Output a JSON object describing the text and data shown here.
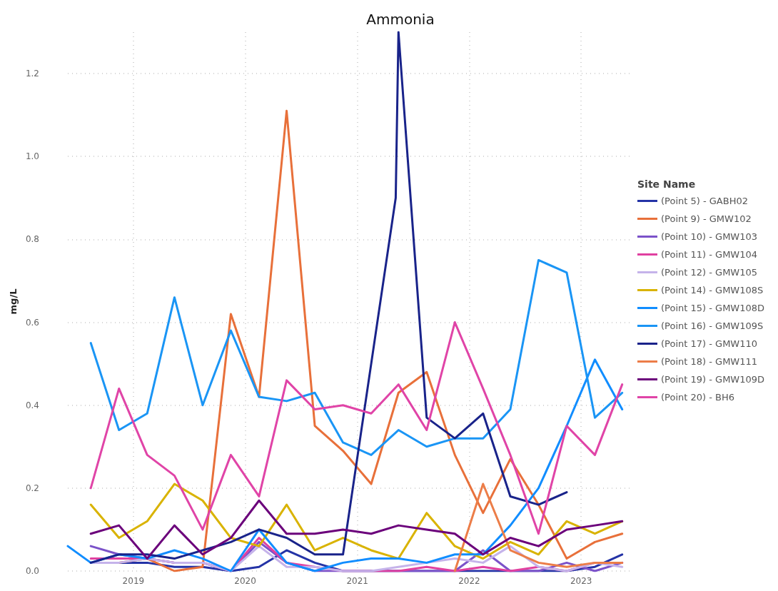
{
  "chart_data": {
    "type": "line",
    "title": "Ammonia",
    "ylabel": "mg/L",
    "legend_title": "Site Name",
    "legend": "right",
    "grid": true,
    "marker": "none",
    "line_style": "solid",
    "xlim": [
      "2018-06-01",
      "2023-06-15"
    ],
    "xticks": [
      {
        "value": "2019",
        "label": "2019"
      },
      {
        "value": "2020",
        "label": "2020"
      },
      {
        "value": "2021",
        "label": "2021"
      },
      {
        "value": "2022",
        "label": "2022"
      },
      {
        "value": "2023",
        "label": "2023"
      }
    ],
    "ylim": [
      0,
      1.3
    ],
    "yticks": [
      {
        "value": 0,
        "label": "0.0"
      },
      0.2,
      0.4,
      0.6,
      0.8,
      {
        "value": 1,
        "label": "1.0"
      },
      1.2
    ],
    "x": [
      "2018-08-15",
      "2018-11-15",
      "2019-02-15",
      "2019-05-15",
      "2019-08-15",
      "2019-11-15",
      "2020-02-15",
      "2020-05-15",
      "2020-08-15",
      "2020-11-15",
      "2021-02-15",
      "2021-05-15",
      "2021-08-15",
      "2021-11-15",
      "2022-02-15",
      "2022-05-15",
      "2022-08-15",
      "2022-11-15",
      "2023-02-15",
      "2023-05-15"
    ],
    "series": [
      {
        "name": "(Point 5) - GABH02",
        "color": "#2433a6",
        "values": [
          0.02,
          0.02,
          0.02,
          0.01,
          0.01,
          0.0,
          0.01,
          0.05,
          0.02,
          0.0,
          0.0,
          0.0,
          0.0,
          0.0,
          0.0,
          0.0,
          0.0,
          0.0,
          0.01,
          0.04
        ]
      },
      {
        "name": "(Point 9) - GMW102",
        "color": "#e8703a",
        "values": [
          0.02,
          0.02,
          0.03,
          0.0,
          0.01,
          0.62,
          0.42,
          1.11,
          0.35,
          0.29,
          0.21,
          0.43,
          0.48,
          0.28,
          0.14,
          0.27,
          0.16,
          0.03,
          0.07,
          0.09
        ]
      },
      {
        "name": "(Point 10) - GMW103",
        "color": "#7b52c9",
        "values": [
          0.06,
          0.04,
          0.03,
          0.02,
          0.02,
          0.0,
          0.07,
          0.02,
          0.0,
          0.0,
          0.0,
          0.0,
          0.0,
          0.0,
          0.05,
          0.0,
          0.0,
          0.02,
          0.0,
          0.02
        ]
      },
      {
        "name": "(Point 11) - GMW104",
        "color": "#e040a0",
        "values": [
          0.03,
          0.03,
          0.03,
          0.02,
          0.02,
          0.0,
          0.08,
          0.02,
          0.01,
          0.0,
          0.0,
          0.0,
          0.01,
          0.0,
          0.01,
          0.0,
          0.01,
          0.0,
          0.02,
          0.02
        ]
      },
      {
        "name": "(Point 12) - GMW105",
        "color": "#c5b3ea",
        "values": [
          0.02,
          0.02,
          0.03,
          0.02,
          0.02,
          0.0,
          0.06,
          0.01,
          0.01,
          0.0,
          0.0,
          0.01,
          0.02,
          0.03,
          0.02,
          0.06,
          0.01,
          0.0,
          0.02,
          0.01
        ]
      },
      {
        "name": "(Point 14) - GMW108S",
        "color": "#d9b300",
        "values": [
          0.16,
          0.08,
          0.12,
          0.21,
          0.17,
          0.08,
          0.06,
          0.16,
          0.05,
          0.08,
          0.05,
          0.03,
          0.14,
          0.06,
          0.03,
          0.07,
          0.04,
          0.12,
          0.09,
          0.12
        ]
      },
      {
        "name": "(Point 15) - GMW108D",
        "color": "#118dff",
        "x": [
          "2018-06-01",
          "2018-08-15",
          "2018-11-15",
          "2019-02-15",
          "2019-05-15",
          "2019-08-15",
          "2019-11-15",
          "2020-02-15",
          "2020-05-15",
          "2020-08-15",
          "2020-11-15",
          "2021-02-15",
          "2021-05-15",
          "2021-08-15",
          "2021-11-15",
          "2022-02-15",
          "2022-05-15",
          "2022-08-15",
          "2022-11-15",
          "2023-02-15",
          "2023-05-15"
        ],
        "values": [
          0.06,
          0.02,
          0.04,
          0.03,
          0.05,
          0.03,
          0.0,
          0.1,
          0.02,
          0.0,
          0.02,
          0.03,
          0.03,
          0.02,
          0.04,
          0.04,
          0.11,
          0.2,
          0.35,
          0.51,
          0.39
        ]
      },
      {
        "name": "(Point 16) - GMW109S",
        "color": "#1a95f5",
        "values": [
          0.55,
          0.34,
          0.38,
          0.66,
          0.4,
          0.58,
          0.42,
          0.41,
          0.43,
          0.31,
          0.28,
          0.34,
          0.3,
          0.32,
          0.32,
          0.39,
          0.75,
          0.72,
          0.37,
          0.43
        ]
      },
      {
        "name": "(Point 17) - GMW110",
        "color": "#19238a",
        "x": [
          "2018-08-15",
          "2018-11-15",
          "2019-02-15",
          "2019-05-15",
          "2019-08-15",
          "2019-11-15",
          "2020-02-15",
          "2020-05-15",
          "2020-08-15",
          "2020-11-15",
          "2021-05-06",
          "2021-05-15",
          "2021-08-15",
          "2021-11-15",
          "2022-02-15",
          "2022-05-15",
          "2022-08-15",
          "2022-11-15"
        ],
        "values": [
          0.02,
          0.04,
          0.04,
          0.03,
          0.05,
          0.07,
          0.1,
          0.08,
          0.04,
          0.04,
          0.9,
          1.3,
          0.37,
          0.32,
          0.38,
          0.18,
          0.16,
          0.19
        ]
      },
      {
        "name": "(Point 18) - GMW111",
        "color": "#ec7d48",
        "x": [
          "2021-11-15",
          "2022-02-15",
          "2022-05-15",
          "2022-08-15",
          "2022-11-15",
          "2023-02-15",
          "2023-05-15"
        ],
        "values": [
          0.0,
          0.21,
          0.05,
          0.02,
          0.01,
          0.02,
          0.02
        ]
      },
      {
        "name": "(Point 19) - GMW109D",
        "color": "#6b007b",
        "values": [
          0.09,
          0.11,
          0.03,
          0.11,
          0.04,
          0.08,
          0.17,
          0.09,
          0.09,
          0.1,
          0.09,
          0.11,
          0.1,
          0.09,
          0.04,
          0.08,
          0.06,
          0.1,
          0.11,
          0.12
        ]
      },
      {
        "name": "(Point 20) - BH6",
        "color": "#e044a7",
        "values": [
          0.2,
          0.44,
          0.28,
          0.23,
          0.1,
          0.28,
          0.18,
          0.46,
          0.39,
          0.4,
          0.38,
          0.45,
          0.34,
          0.6,
          0.44,
          0.28,
          0.09,
          0.35,
          0.28,
          0.45
        ]
      }
    ]
  }
}
